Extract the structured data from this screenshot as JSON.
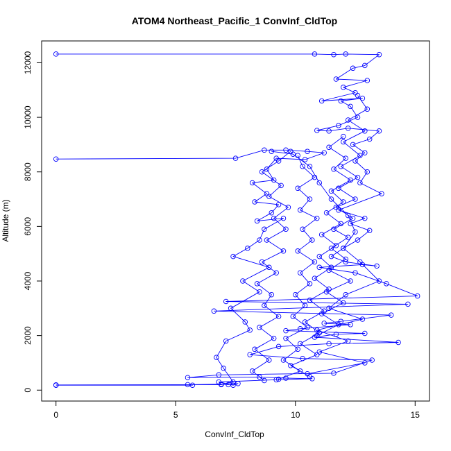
{
  "chart_data": {
    "type": "line",
    "title": "ATOM4 Northeast_Pacific_1 ConvInf_CldTop",
    "xlabel": "ConvInf_CldTop",
    "ylabel": "Altitude (m)",
    "xlim": [
      -0.6,
      15.6
    ],
    "ylim": [
      -400,
      12800
    ],
    "x_ticks": [
      0,
      5,
      10,
      15
    ],
    "x_tick_labels": [
      "0",
      "5",
      "10",
      "15"
    ],
    "y_ticks": [
      0,
      2000,
      4000,
      6000,
      8000,
      10000,
      12000
    ],
    "y_tick_labels": [
      "0",
      "2000",
      "4000",
      "6000",
      "8000",
      "10000",
      "12000"
    ],
    "grid": false,
    "legend": "none",
    "series": [
      {
        "color": "#0000ff",
        "points": [
          [
            0.0,
            180
          ],
          [
            5.7,
            180
          ],
          [
            5.5,
            200
          ],
          [
            6.9,
            220
          ],
          [
            7.2,
            200
          ],
          [
            7.6,
            240
          ],
          [
            7.4,
            180
          ],
          [
            6.8,
            300
          ],
          [
            9.2,
            380
          ],
          [
            10.7,
            420
          ],
          [
            9.6,
            440
          ],
          [
            8.5,
            480
          ],
          [
            5.5,
            460
          ],
          [
            6.8,
            560
          ],
          [
            11.6,
            620
          ],
          [
            13.2,
            1100
          ],
          [
            10.3,
            1160
          ],
          [
            8.1,
            1300
          ],
          [
            9.3,
            1600
          ],
          [
            11.4,
            1700
          ],
          [
            14.3,
            1750
          ],
          [
            10.8,
            1940
          ],
          [
            11.7,
            2050
          ],
          [
            12.9,
            2080
          ],
          [
            9.6,
            2180
          ],
          [
            10.2,
            2250
          ],
          [
            12.3,
            2400
          ],
          [
            11.2,
            2450
          ],
          [
            11.9,
            2520
          ],
          [
            14.0,
            2750
          ],
          [
            6.6,
            2900
          ],
          [
            14.7,
            3150
          ],
          [
            7.1,
            3250
          ],
          [
            15.1,
            3450
          ],
          [
            13.8,
            3900
          ],
          [
            12.5,
            4300
          ],
          [
            11.0,
            4500
          ],
          [
            12.8,
            4600
          ],
          [
            13.4,
            4550
          ],
          [
            12.1,
            4700
          ],
          [
            11.5,
            4900
          ],
          [
            12.0,
            5200
          ],
          [
            12.6,
            5500
          ],
          [
            13.1,
            5850
          ],
          [
            12.3,
            6100
          ],
          [
            12.9,
            6300
          ],
          [
            11.8,
            6600
          ],
          [
            13.6,
            7200
          ],
          [
            12.7,
            7600
          ],
          [
            13.0,
            8000
          ],
          [
            12.5,
            8400
          ],
          [
            12.9,
            8700
          ],
          [
            12.4,
            9000
          ],
          [
            13.1,
            9200
          ],
          [
            13.5,
            9500
          ],
          [
            12.2,
            9600
          ],
          [
            11.4,
            9500
          ],
          [
            10.9,
            9520
          ],
          [
            11.8,
            9700
          ],
          [
            12.6,
            10000
          ],
          [
            12.3,
            10400
          ],
          [
            11.9,
            10600
          ],
          [
            12.8,
            10700
          ],
          [
            11.1,
            10600
          ],
          [
            12.5,
            10900
          ],
          [
            12.0,
            11100
          ],
          [
            13.0,
            11350
          ],
          [
            11.7,
            11400
          ],
          [
            12.4,
            11800
          ],
          [
            12.9,
            11900
          ],
          [
            13.5,
            12300
          ],
          [
            12.1,
            12320
          ],
          [
            11.6,
            12300
          ],
          [
            10.8,
            12320
          ],
          [
            0.0,
            12320
          ]
        ]
      },
      {
        "color": "#0000ff",
        "points": [
          [
            0.0,
            8470
          ],
          [
            7.5,
            8500
          ],
          [
            8.7,
            8800
          ],
          [
            9.6,
            8800
          ],
          [
            10.5,
            8750
          ],
          [
            11.2,
            8700
          ],
          [
            10.4,
            8450
          ],
          [
            9.2,
            8500
          ],
          [
            8.8,
            8100
          ],
          [
            9.1,
            7700
          ],
          [
            8.2,
            7600
          ],
          [
            8.8,
            7200
          ],
          [
            8.3,
            6900
          ],
          [
            9.3,
            6800
          ],
          [
            9.0,
            6500
          ],
          [
            8.4,
            6200
          ],
          [
            9.5,
            6300
          ],
          [
            8.7,
            5900
          ],
          [
            8.5,
            5500
          ],
          [
            8.0,
            5200
          ],
          [
            7.4,
            4900
          ],
          [
            8.9,
            4500
          ],
          [
            7.8,
            4000
          ],
          [
            8.5,
            3600
          ],
          [
            7.3,
            3000
          ],
          [
            7.9,
            2500
          ],
          [
            8.1,
            2200
          ],
          [
            7.1,
            1800
          ],
          [
            6.7,
            1200
          ],
          [
            7.0,
            800
          ],
          [
            7.4,
            300
          ],
          [
            6.9,
            200
          ],
          [
            0.0,
            190
          ]
        ]
      },
      {
        "color": "#0000ff",
        "points": [
          [
            10.1,
            8600
          ],
          [
            10.3,
            8200
          ],
          [
            10.8,
            7800
          ],
          [
            10.1,
            7400
          ],
          [
            10.6,
            7000
          ],
          [
            10.2,
            6600
          ],
          [
            10.9,
            6300
          ],
          [
            10.3,
            5900
          ],
          [
            10.7,
            5500
          ],
          [
            10.1,
            5100
          ],
          [
            10.8,
            4700
          ],
          [
            10.2,
            4300
          ],
          [
            10.6,
            3900
          ],
          [
            10.0,
            3500
          ],
          [
            10.4,
            3100
          ],
          [
            9.9,
            2700
          ],
          [
            10.5,
            2300
          ],
          [
            9.6,
            1900
          ],
          [
            10.1,
            1500
          ],
          [
            9.5,
            1100
          ],
          [
            10.2,
            700
          ],
          [
            9.3,
            400
          ]
        ]
      },
      {
        "color": "#0000ff",
        "points": [
          [
            12.0,
            9300
          ],
          [
            11.4,
            8900
          ],
          [
            12.1,
            8500
          ],
          [
            11.6,
            8100
          ],
          [
            12.3,
            7700
          ],
          [
            11.5,
            7300
          ],
          [
            12.0,
            6900
          ],
          [
            11.3,
            6500
          ],
          [
            11.9,
            6100
          ],
          [
            11.1,
            5700
          ],
          [
            11.7,
            5300
          ],
          [
            11.0,
            4900
          ],
          [
            11.5,
            4500
          ],
          [
            10.8,
            4100
          ],
          [
            11.4,
            3700
          ],
          [
            10.6,
            3300
          ],
          [
            11.2,
            2900
          ],
          [
            10.4,
            2500
          ],
          [
            11.0,
            2100
          ],
          [
            10.2,
            1700
          ],
          [
            10.9,
            1300
          ],
          [
            9.8,
            900
          ],
          [
            10.6,
            500
          ]
        ]
      },
      {
        "color": "#0000ff",
        "points": [
          [
            9.0,
            8750
          ],
          [
            9.9,
            8650
          ],
          [
            10.6,
            8200
          ],
          [
            11.0,
            7600
          ],
          [
            11.5,
            7000
          ],
          [
            12.2,
            6400
          ],
          [
            12.5,
            5800
          ],
          [
            12.0,
            5200
          ],
          [
            12.7,
            4700
          ],
          [
            13.5,
            4000
          ],
          [
            12.1,
            3500
          ],
          [
            11.4,
            3000
          ],
          [
            12.8,
            2600
          ],
          [
            10.9,
            2200
          ],
          [
            12.2,
            1800
          ],
          [
            11.0,
            1400
          ],
          [
            12.9,
            1000
          ],
          [
            10.5,
            600
          ]
        ]
      },
      {
        "color": "#0000ff",
        "points": [
          [
            12.6,
            10800
          ],
          [
            13.0,
            10300
          ],
          [
            12.2,
            9900
          ],
          [
            12.9,
            9500
          ],
          [
            12.0,
            9100
          ],
          [
            12.7,
            8600
          ],
          [
            11.9,
            8200
          ],
          [
            12.6,
            7800
          ],
          [
            11.8,
            7400
          ],
          [
            12.5,
            7000
          ],
          [
            11.7,
            6700
          ],
          [
            12.4,
            6300
          ],
          [
            11.6,
            5900
          ],
          [
            12.2,
            5600
          ],
          [
            11.5,
            5200
          ],
          [
            12.1,
            4800
          ],
          [
            11.4,
            4400
          ],
          [
            12.3,
            4000
          ],
          [
            11.3,
            3600
          ],
          [
            12.0,
            3200
          ],
          [
            11.1,
            2800
          ],
          [
            11.8,
            2400
          ],
          [
            10.9,
            2000
          ]
        ]
      },
      {
        "color": "#0000ff",
        "points": [
          [
            9.8,
            8750
          ],
          [
            9.3,
            8400
          ],
          [
            8.6,
            8000
          ],
          [
            9.4,
            7500
          ],
          [
            8.9,
            7100
          ],
          [
            9.7,
            6700
          ],
          [
            9.1,
            6300
          ],
          [
            9.6,
            5900
          ],
          [
            8.8,
            5500
          ],
          [
            9.5,
            5100
          ],
          [
            8.6,
            4700
          ],
          [
            9.2,
            4300
          ],
          [
            8.4,
            3900
          ],
          [
            9.0,
            3500
          ],
          [
            8.7,
            3100
          ],
          [
            9.3,
            2700
          ],
          [
            8.5,
            2300
          ],
          [
            9.1,
            1900
          ],
          [
            8.3,
            1500
          ],
          [
            8.9,
            1100
          ],
          [
            8.2,
            700
          ],
          [
            8.7,
            350
          ]
        ]
      }
    ]
  }
}
